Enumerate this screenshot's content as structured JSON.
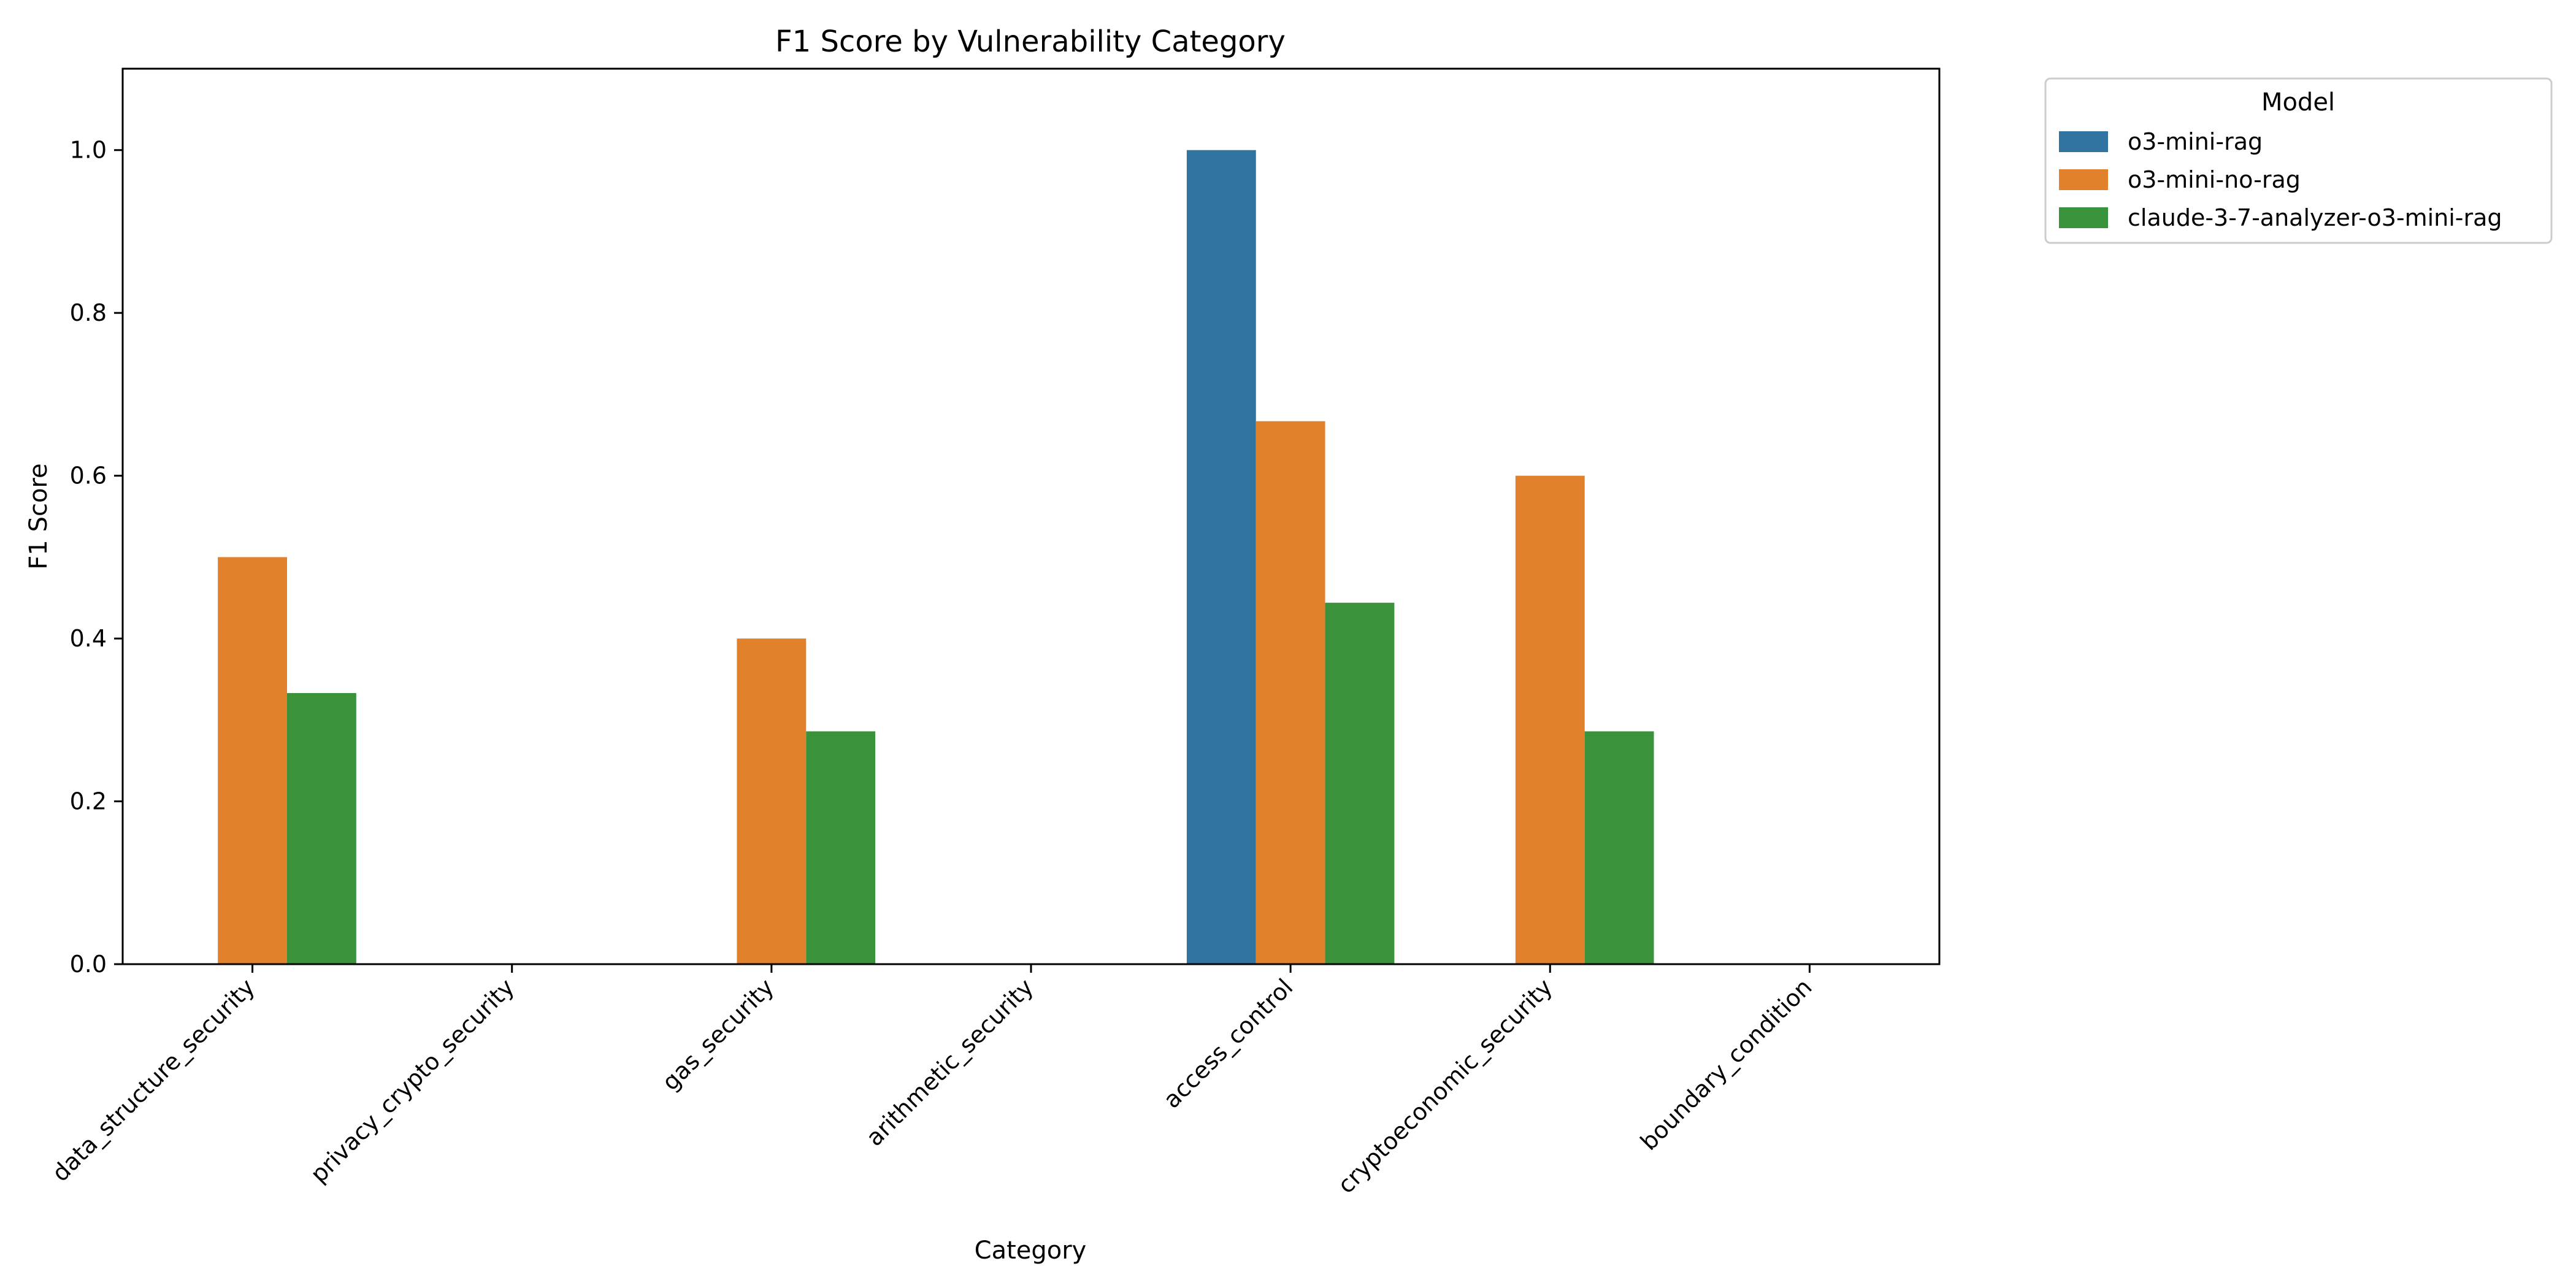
{
  "chart_data": {
    "type": "bar",
    "title": "F1 Score by Vulnerability Category",
    "xlabel": "Category",
    "ylabel": "F1 Score",
    "ylim": [
      0,
      1.1
    ],
    "yticks": [
      0.0,
      0.2,
      0.4,
      0.6,
      0.8,
      1.0
    ],
    "ytick_labels": [
      "0.0",
      "0.2",
      "0.4",
      "0.6",
      "0.8",
      "1.0"
    ],
    "grid": false,
    "legend": {
      "title": "Model",
      "placement": "outside-top-right"
    },
    "categories": [
      "data_structure_security",
      "privacy_crypto_security",
      "gas_security",
      "arithmetic_security",
      "access_control",
      "cryptoeconomic_security",
      "boundary_condition"
    ],
    "series": [
      {
        "name": "o3-mini-rag",
        "color": "#3274a1",
        "values": [
          0,
          0,
          0,
          0,
          1.0,
          0,
          0
        ]
      },
      {
        "name": "o3-mini-no-rag",
        "color": "#e1812c",
        "values": [
          0.5,
          0,
          0.4,
          0,
          0.667,
          0.6,
          0
        ]
      },
      {
        "name": "claude-3-7-analyzer-o3-mini-rag",
        "color": "#3a923a",
        "values": [
          0.333,
          0,
          0.286,
          0,
          0.444,
          0.286,
          0
        ]
      }
    ]
  }
}
